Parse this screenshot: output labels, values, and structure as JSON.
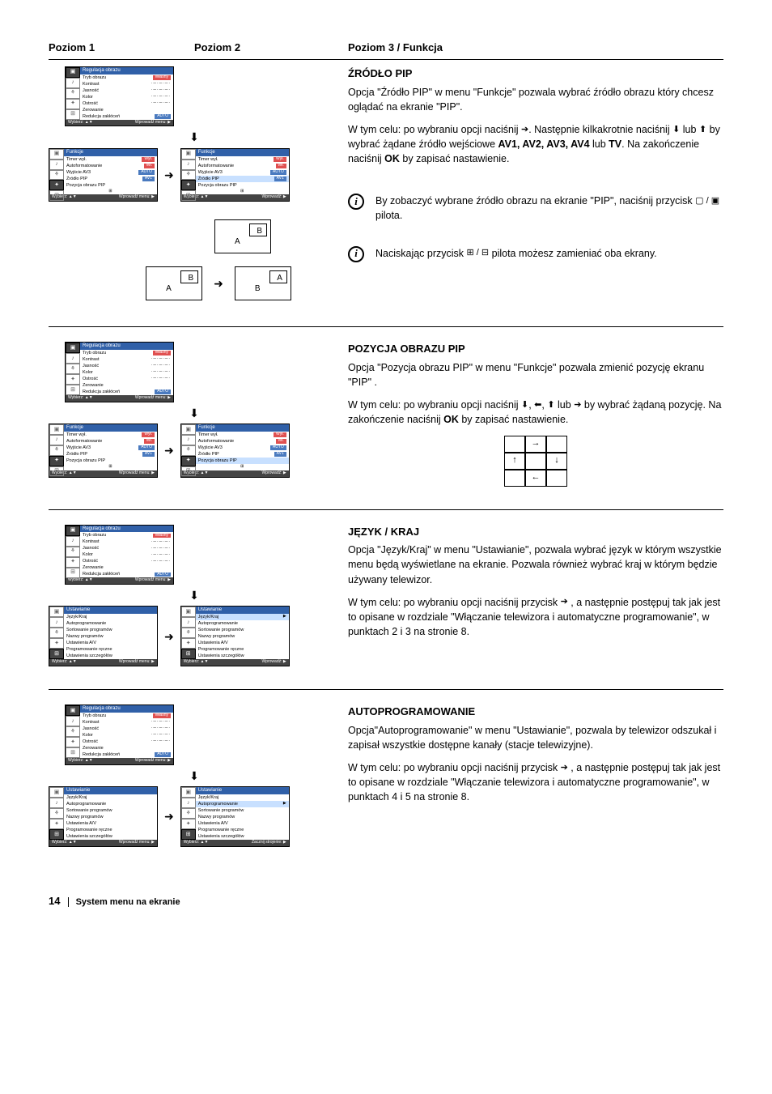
{
  "headers": {
    "c1": "Poziom 1",
    "c2": "Poziom 2",
    "c3": "Poziom 3 / Funkcja"
  },
  "labels": {
    "wybierz": "Wybierz:",
    "wprowadz_menu": "Wprowadź menu:",
    "wprowadz": "Wprowadź:",
    "zacznij": "Zacznij strojenie:",
    "av_tri": "▲▼",
    "arrow_r": "▶"
  },
  "menu_regulacja": {
    "title": "Regulacja obrazu",
    "items": [
      "Tryb obrazu",
      "Kontrast",
      "Jasność",
      "Kolor",
      "Ostrość",
      "Zerowanie",
      "Redukcja zakłóceń"
    ],
    "val0": "Własny",
    "val_auto": "AUTO"
  },
  "menu_funkcje1": {
    "title": "Funkcje",
    "items": [
      "Timer wył.",
      "Autoformatowanie",
      "Wyjście AV3",
      "Źródło PIP",
      "Pozycja obrazu PIP"
    ],
    "vals": [
      "Wył.",
      "Wł.",
      "AUTO",
      "AV1",
      ""
    ]
  },
  "menu_funkcje2": {
    "title": "Funkcje",
    "items": [
      "Timer wył.",
      "Autoformatowanie",
      "Wyjście AV3",
      "Źródło PIP",
      "Pozycja obrazu PIP"
    ],
    "vals": [
      "Wył.",
      "Wł.",
      "AUTO",
      "AV1",
      ""
    ],
    "hl_index": 3
  },
  "menu_funkcje3": {
    "title": "Funkcje",
    "items": [
      "Timer wył.",
      "Autoformatowanie",
      "Wyjście AV3",
      "Źródło PIP",
      "Pozycja obrazu PIP"
    ],
    "vals": [
      "Wył.",
      "Wł.",
      "AUTO",
      "AV1",
      ""
    ],
    "hl_index": 4
  },
  "menu_ustaw": {
    "title": "Ustawianie",
    "items": [
      "Język/Kraj",
      "Autoprogramowanie",
      "Sortowanie programów",
      "Nazwy programów",
      "Ustawienia A/V",
      "Programowanie ręczne",
      "Ustawienia szczegółów"
    ]
  },
  "sec1": {
    "title": "ŹRÓDŁO  PIP",
    "p1": "Opcja \"Źródło PIP\" w menu \"Funkcje\" pozwala  wybrać  źródło obrazu który chcesz oglądać  na ekranie \"PIP\".",
    "p2a": "W tym celu: po wybraniu opcji naciśnij  ",
    "p2b": ". Następnie kilkakrotnie naciśnij ",
    "p2c": " lub ",
    "p2d": " by wybrać  żądane źródło wejściowe ",
    "p2e": "AV1, AV2, AV3, AV4",
    "p2f": " lub ",
    "p2g": "TV",
    "p2h": ". Na zakończenie naciśnij ",
    "p2i": "OK",
    "p2j": " by zapisać nastawienie.",
    "info1a": "By zobaczyć  wybrane źródło obrazu na ekranie \"PIP\", naciśnij przycisk ",
    "info1b": " pilota.",
    "info2a": "Naciskając przycisk ",
    "info2b": " pilota możesz zamieniać oba ekrany."
  },
  "sec2": {
    "title": "POZYCJA OBRAZU PIP",
    "p1": "Opcja \"Pozycja obrazu PIP\" w menu \"Funkcje\" pozwala zmienić pozycję ekranu \"PIP\" .",
    "p2a": "W tym celu: po wybraniu opcji  naciśnij  ",
    "p2b": " by wybrać żądaną pozycję. Na zakończenie naciśnij  ",
    "p2c": "OK",
    "p2d": "  by zapisać nastawienie.",
    "pos_labels": {
      "tr": "→",
      "l": "↑",
      "r": "↓",
      "bl": "←"
    }
  },
  "sec3": {
    "title": "JĘZYK / KRAJ",
    "p1": "Opcja \"Język/Kraj\" w menu \"Ustawianie\", pozwala wybrać język w którym wszystkie menu będą wyświetlane na ekranie. Pozwala również wybrać kraj w którym będzie używany telewizor.",
    "p2a": "W tym celu: po wybraniu opcji  naciśnij przycisk  ",
    "p2b": " , a następnie postępuj tak jak jest to opisane w  rozdziale \"Włączanie telewizora i automatyczne programowanie\", w punktach 2 i 3 na stronie 8."
  },
  "sec4": {
    "title": "AUTOPROGRAMOWANIE",
    "p1": "Opcja\"Autoprogramowanie\" w menu \"Ustawianie\", pozwala by telewizor odszukał i zapisał wszystkie dostępne kanały (stacje telewizyjne).",
    "p2a": "W tym celu: po wybraniu opcji naciśnij przycisk ",
    "p2b": " , a następnie postępuj tak jak jest to opisane w rozdziale \"Włączanie telewizora i automatyczne programowanie\", w punktach 4 i 5 na stronie 8."
  },
  "footer": {
    "page": "14",
    "text": "System menu na ekranie"
  }
}
